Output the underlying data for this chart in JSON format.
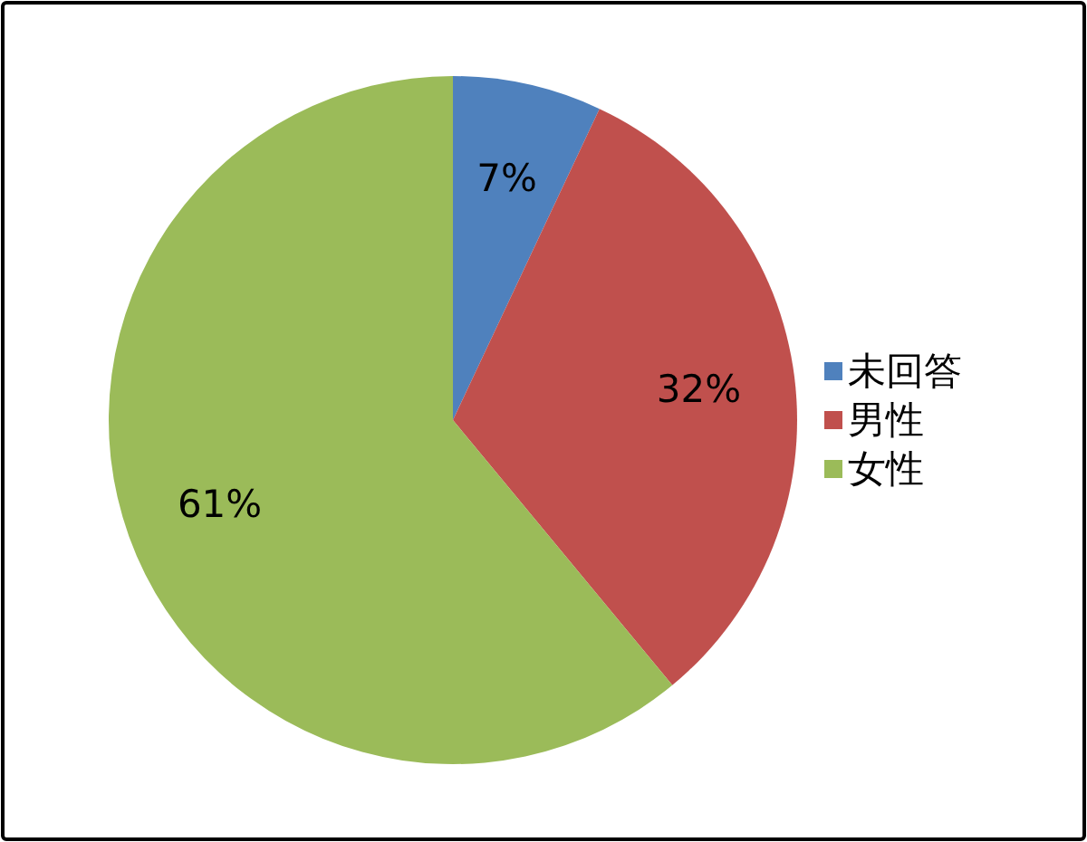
{
  "chart_data": {
    "type": "pie",
    "categories": [
      "未回答",
      "男性",
      "女性"
    ],
    "values": [
      7,
      32,
      61
    ],
    "value_labels": [
      "7%",
      "32%",
      "61%"
    ],
    "colors": [
      "#4f81bd",
      "#c0504d",
      "#9bbb59"
    ],
    "legend": "right"
  }
}
